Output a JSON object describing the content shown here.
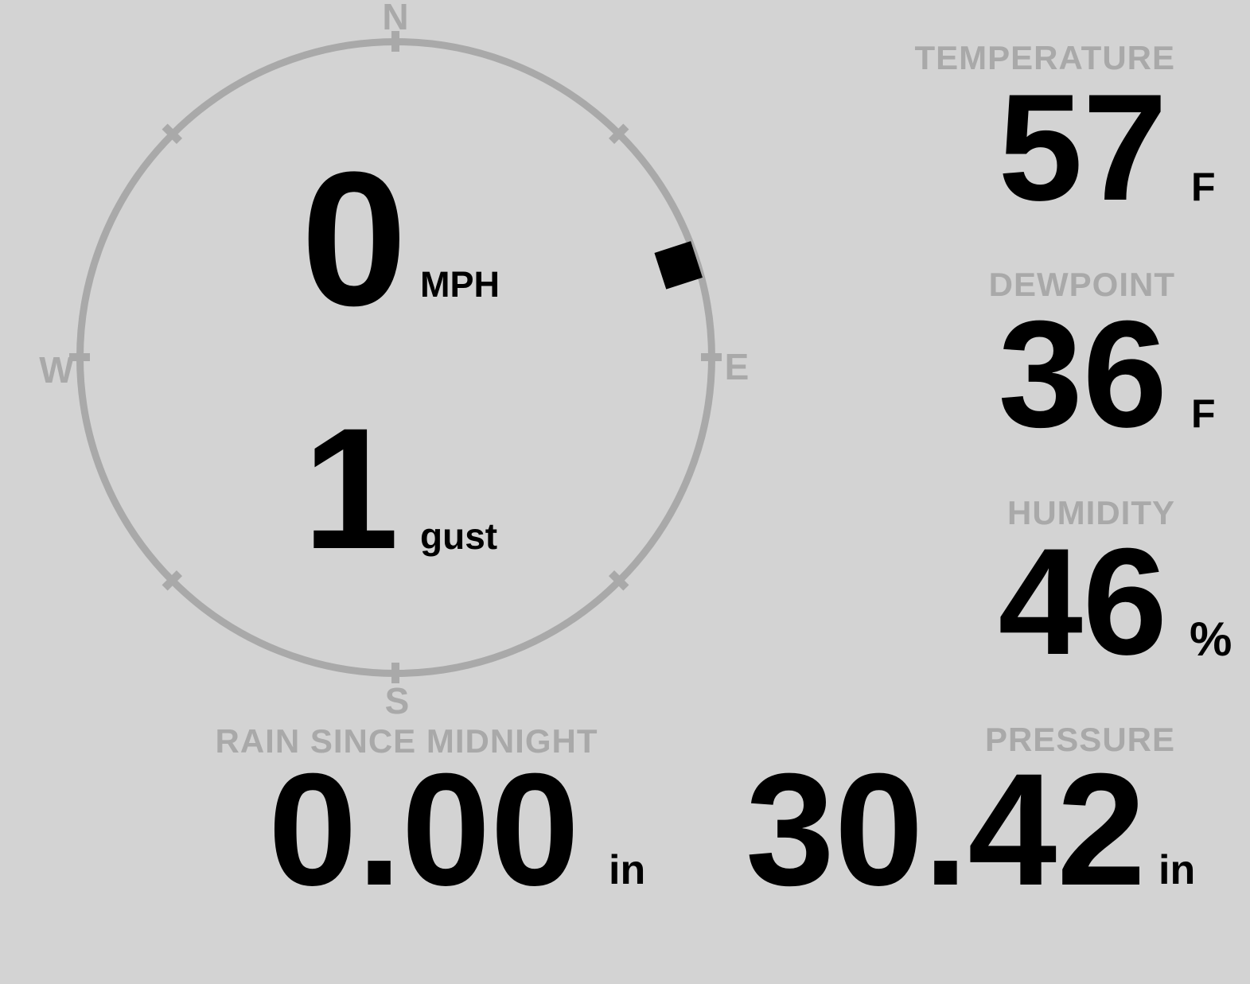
{
  "colors": {
    "background": "#d3d3d3",
    "muted": "#a9a9a9",
    "value": "#000000"
  },
  "compass": {
    "cardinal_labels": {
      "north": "N",
      "east": "E",
      "south": "S",
      "west": "W"
    },
    "direction_deg": 72,
    "speed": {
      "value": "0",
      "unit": "MPH"
    },
    "gust": {
      "value": "1",
      "unit": "gust"
    }
  },
  "metrics": {
    "temperature": {
      "label": "TEMPERATURE",
      "value": "57",
      "unit": "F"
    },
    "dewpoint": {
      "label": "DEWPOINT",
      "value": "36",
      "unit": "F"
    },
    "humidity": {
      "label": "HUMIDITY",
      "value": "46",
      "unit": "%"
    },
    "rain": {
      "label": "RAIN SINCE MIDNIGHT",
      "value": "0.00",
      "unit": "in"
    },
    "pressure": {
      "label": "PRESSURE",
      "value": "30.42",
      "unit": "in"
    }
  }
}
